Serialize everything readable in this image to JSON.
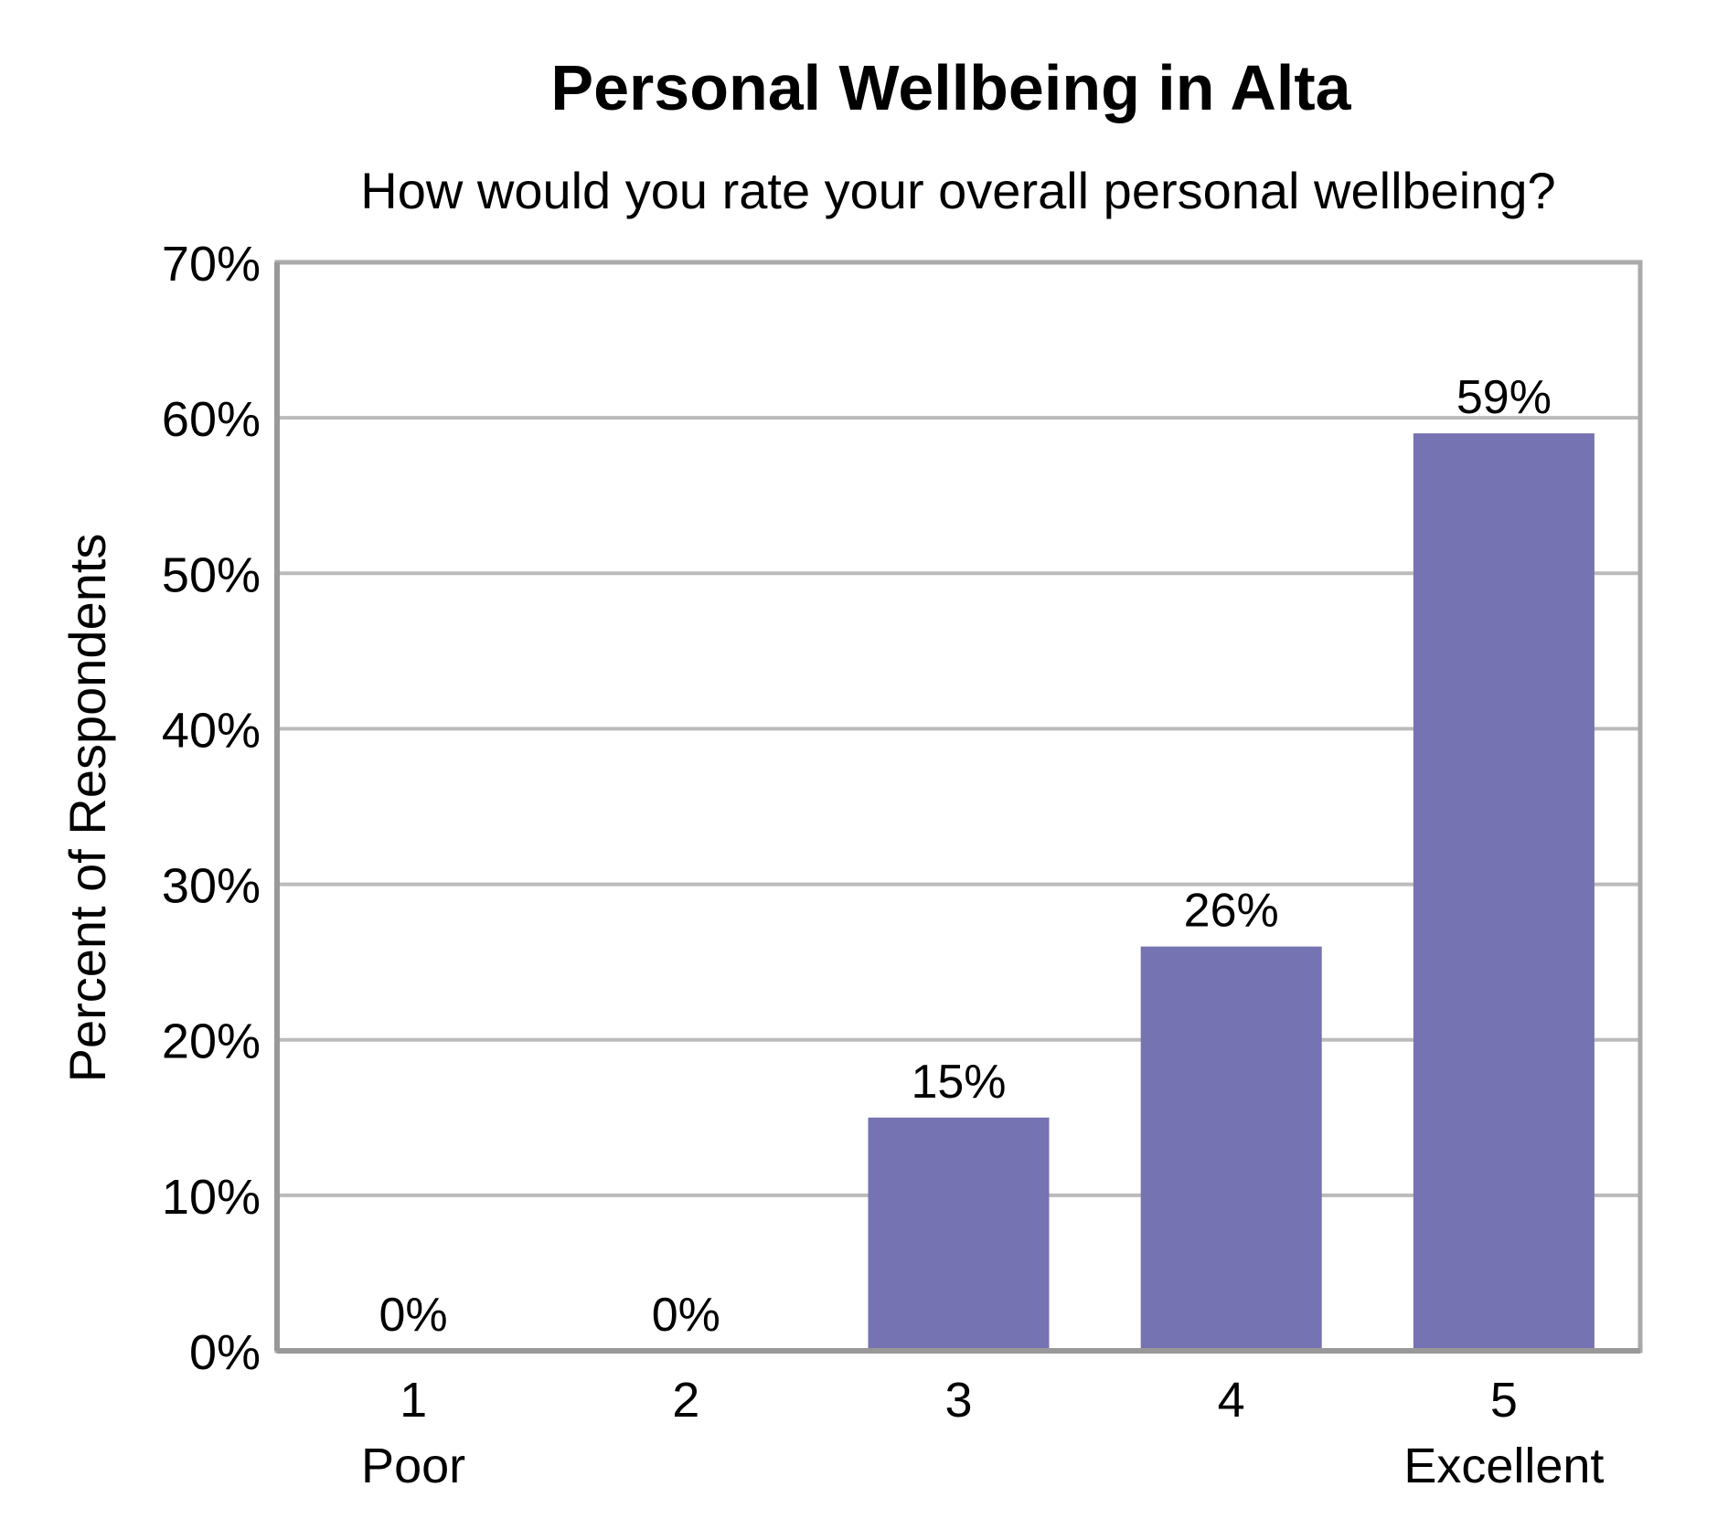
{
  "chart_data": {
    "type": "bar",
    "title": "Personal Wellbeing in Alta",
    "subtitle": "How would you rate your overall personal wellbeing?",
    "xlabel": "",
    "ylabel": "Percent of Respondents",
    "categories": [
      "1",
      "2",
      "3",
      "4",
      "5"
    ],
    "category_sublabels": [
      "Poor",
      "",
      "",
      "",
      "Excellent"
    ],
    "values": [
      0,
      0,
      15,
      26,
      59
    ],
    "data_labels": [
      "0%",
      "0%",
      "15%",
      "26%",
      "59%"
    ],
    "ylim": [
      0,
      70
    ],
    "yticks": [
      0,
      10,
      20,
      30,
      40,
      50,
      60,
      70
    ],
    "ytick_labels": [
      "0%",
      "10%",
      "20%",
      "30%",
      "40%",
      "50%",
      "60%",
      "70%"
    ],
    "grid": true,
    "legend": "none",
    "colors": {
      "bar": "#7673B2",
      "grid": "#BBBBBB",
      "frame": "#AAAAAA",
      "axis": "#999999"
    }
  }
}
